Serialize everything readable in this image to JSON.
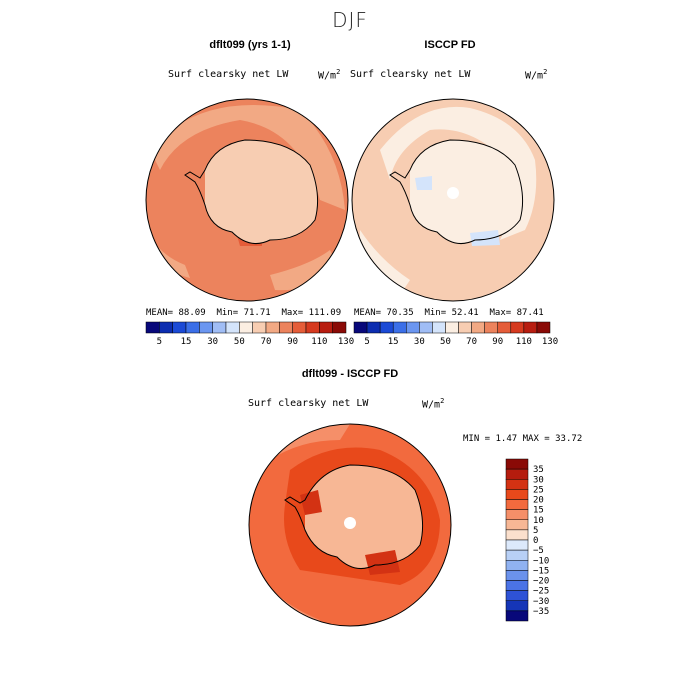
{
  "page": {
    "title": "DJF"
  },
  "chart_data": [
    {
      "type": "heatmap",
      "title": "dflt099 (yrs 1-1)",
      "variable": "Surf clearsky net LW",
      "units_base": "W/m",
      "units_exp": "2",
      "stats": {
        "mean_label": "MEAN=",
        "mean": "88.09",
        "min_label": "Min=",
        "min": "71.71",
        "max_label": "Max=",
        "max": "111.09"
      },
      "colorbar": {
        "ticks": [
          "5",
          "15",
          "30",
          "50",
          "70",
          "90",
          "110",
          "130"
        ],
        "colors": [
          "#08087a",
          "#0c2db0",
          "#1b4ad6",
          "#3b6fe8",
          "#6b96f0",
          "#a0bdf5",
          "#d4e4fb",
          "#fbeee2",
          "#f7cdb2",
          "#f2a984",
          "#ec835d",
          "#e55d39",
          "#d63a1f",
          "#b81d10",
          "#8a0a06"
        ]
      }
    },
    {
      "type": "heatmap",
      "title": "ISCCP FD",
      "variable": "Surf clearsky net LW",
      "units_base": "W/m",
      "units_exp": "2",
      "stats": {
        "mean_label": "MEAN=",
        "mean": "70.35",
        "min_label": "Min=",
        "min": "52.41",
        "max_label": "Max=",
        "max": "87.41"
      },
      "colorbar": {
        "ticks": [
          "5",
          "15",
          "30",
          "50",
          "70",
          "90",
          "110",
          "130"
        ],
        "colors": [
          "#08087a",
          "#0c2db0",
          "#1b4ad6",
          "#3b6fe8",
          "#6b96f0",
          "#a0bdf5",
          "#d4e4fb",
          "#fbeee2",
          "#f7cdb2",
          "#f2a984",
          "#ec835d",
          "#e55d39",
          "#d63a1f",
          "#b81d10",
          "#8a0a06"
        ]
      }
    },
    {
      "type": "heatmap",
      "title": "dflt099 - ISCCP FD",
      "variable": "Surf clearsky net LW",
      "units_base": "W/m",
      "units_exp": "2",
      "stats": {
        "min_label": "MIN =",
        "min": "1.47",
        "max_label": "MAX =",
        "max": "33.72"
      },
      "colorbar": {
        "ticks": [
          "35",
          "30",
          "25",
          "20",
          "15",
          "10",
          "5",
          "0",
          "−5",
          "−10",
          "−15",
          "−20",
          "−25",
          "−30",
          "−35"
        ],
        "colors": [
          "#8a0a06",
          "#b51c0e",
          "#d33213",
          "#e8491b",
          "#f26a3e",
          "#f58f69",
          "#f7b795",
          "#fbe0cd",
          "#dce9fb",
          "#b8d0f6",
          "#90b2f1",
          "#6b92ec",
          "#4b73e6",
          "#2e52d6",
          "#1535b7",
          "#08087a"
        ]
      }
    }
  ]
}
